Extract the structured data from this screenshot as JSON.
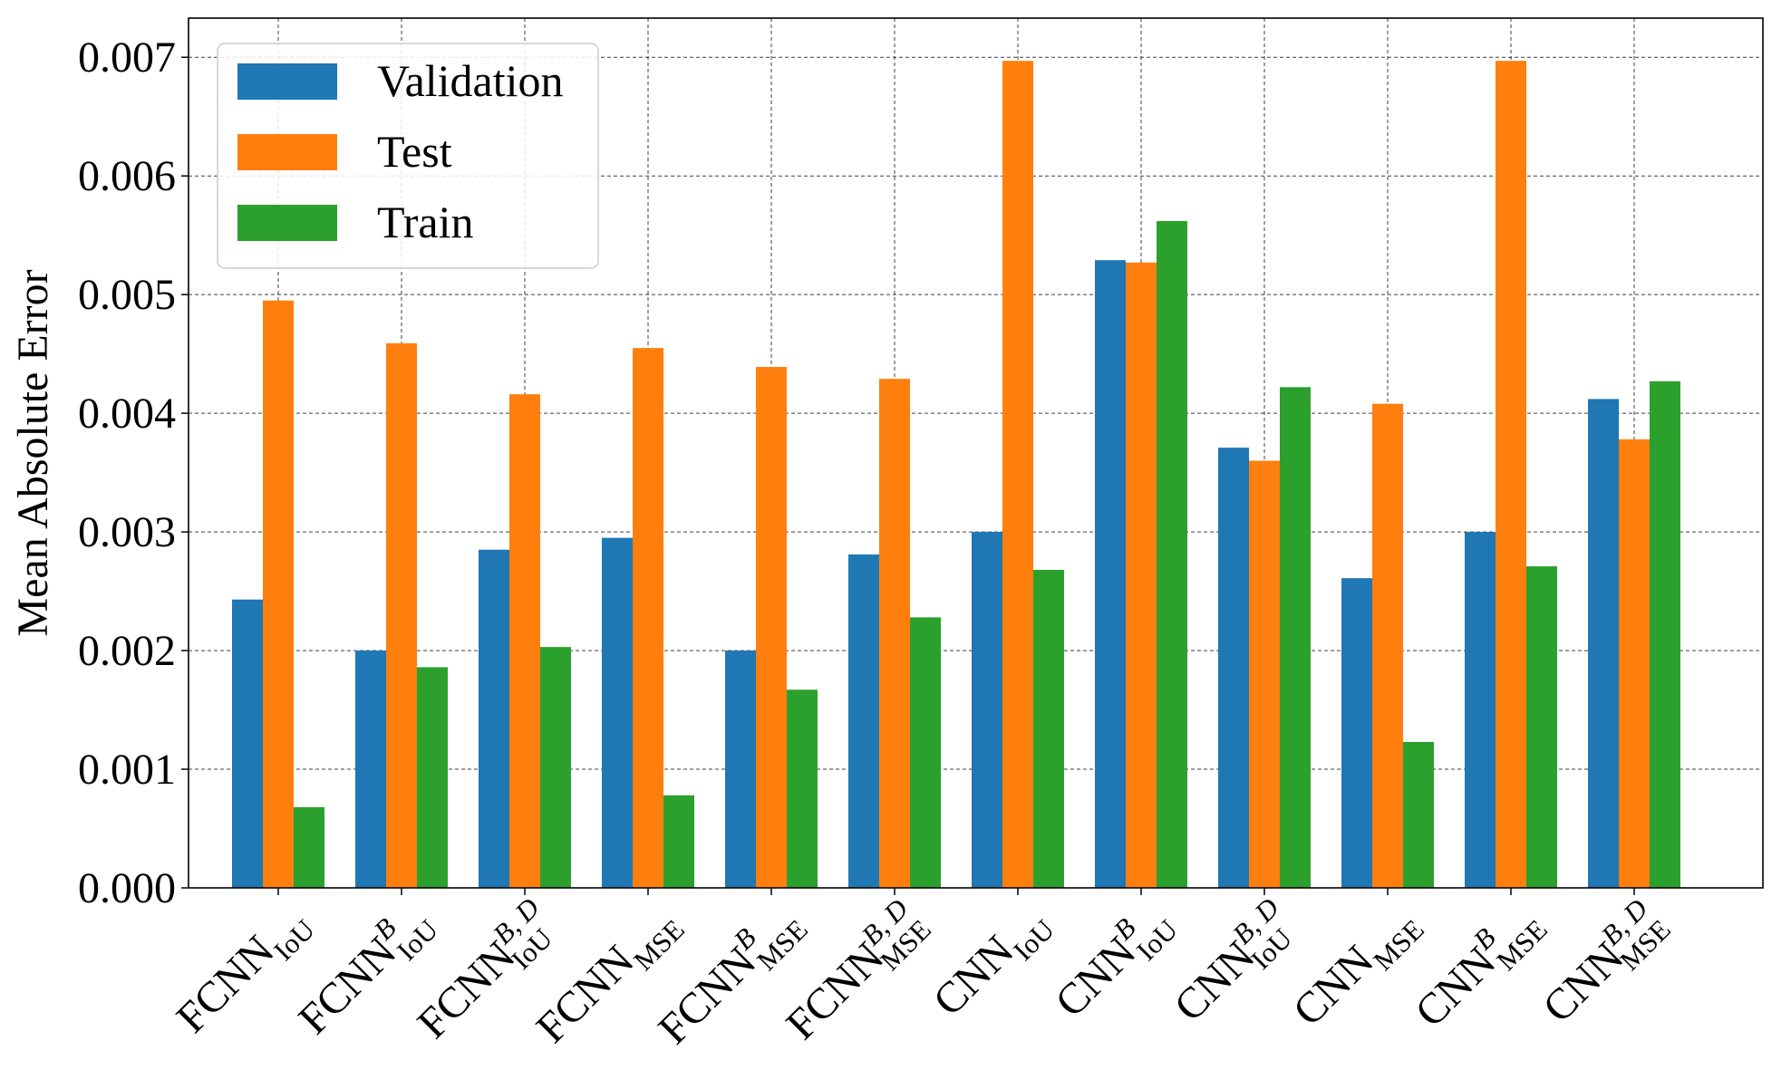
{
  "chart_data": {
    "type": "bar",
    "title": "",
    "xlabel": "",
    "ylabel": "Mean Absolute Error",
    "ylim": [
      0,
      0.00733
    ],
    "yticks": [
      "0.000",
      "0.001",
      "0.002",
      "0.003",
      "0.004",
      "0.005",
      "0.006",
      "0.007"
    ],
    "grid": true,
    "legend_position": "top-left",
    "categories": [
      {
        "base": "FCNN",
        "sub": "IoU",
        "sup": ""
      },
      {
        "base": "FCNN",
        "sub": "IoU",
        "sup": "B"
      },
      {
        "base": "FCNN",
        "sub": "IoU",
        "sup": "B, D"
      },
      {
        "base": "FCNN",
        "sub": "MSE",
        "sup": ""
      },
      {
        "base": "FCNN",
        "sub": "MSE",
        "sup": "B"
      },
      {
        "base": "FCNN",
        "sub": "MSE",
        "sup": "B, D"
      },
      {
        "base": "CNN",
        "sub": "IoU",
        "sup": ""
      },
      {
        "base": "CNN",
        "sub": "IoU",
        "sup": "B"
      },
      {
        "base": "CNN",
        "sub": "IoU",
        "sup": "B, D"
      },
      {
        "base": "CNN",
        "sub": "MSE",
        "sup": ""
      },
      {
        "base": "CNN",
        "sub": "MSE",
        "sup": "B"
      },
      {
        "base": "CNN",
        "sub": "MSE",
        "sup": "B, D"
      }
    ],
    "series": [
      {
        "name": "Validation",
        "color": "#1f77b4",
        "values": [
          0.00243,
          0.002,
          0.00285,
          0.00295,
          0.002,
          0.00281,
          0.003,
          0.00529,
          0.00371,
          0.00261,
          0.003,
          0.00412
        ]
      },
      {
        "name": "Test",
        "color": "#ff7f0e",
        "values": [
          0.00495,
          0.00459,
          0.00416,
          0.00455,
          0.00439,
          0.00429,
          0.00697,
          0.00527,
          0.0036,
          0.00408,
          0.00697,
          0.00378
        ]
      },
      {
        "name": "Train",
        "color": "#2ca02c",
        "values": [
          0.00068,
          0.00186,
          0.00203,
          0.00078,
          0.00167,
          0.00228,
          0.00268,
          0.00562,
          0.00422,
          0.00123,
          0.00271,
          0.00427
        ]
      }
    ]
  }
}
